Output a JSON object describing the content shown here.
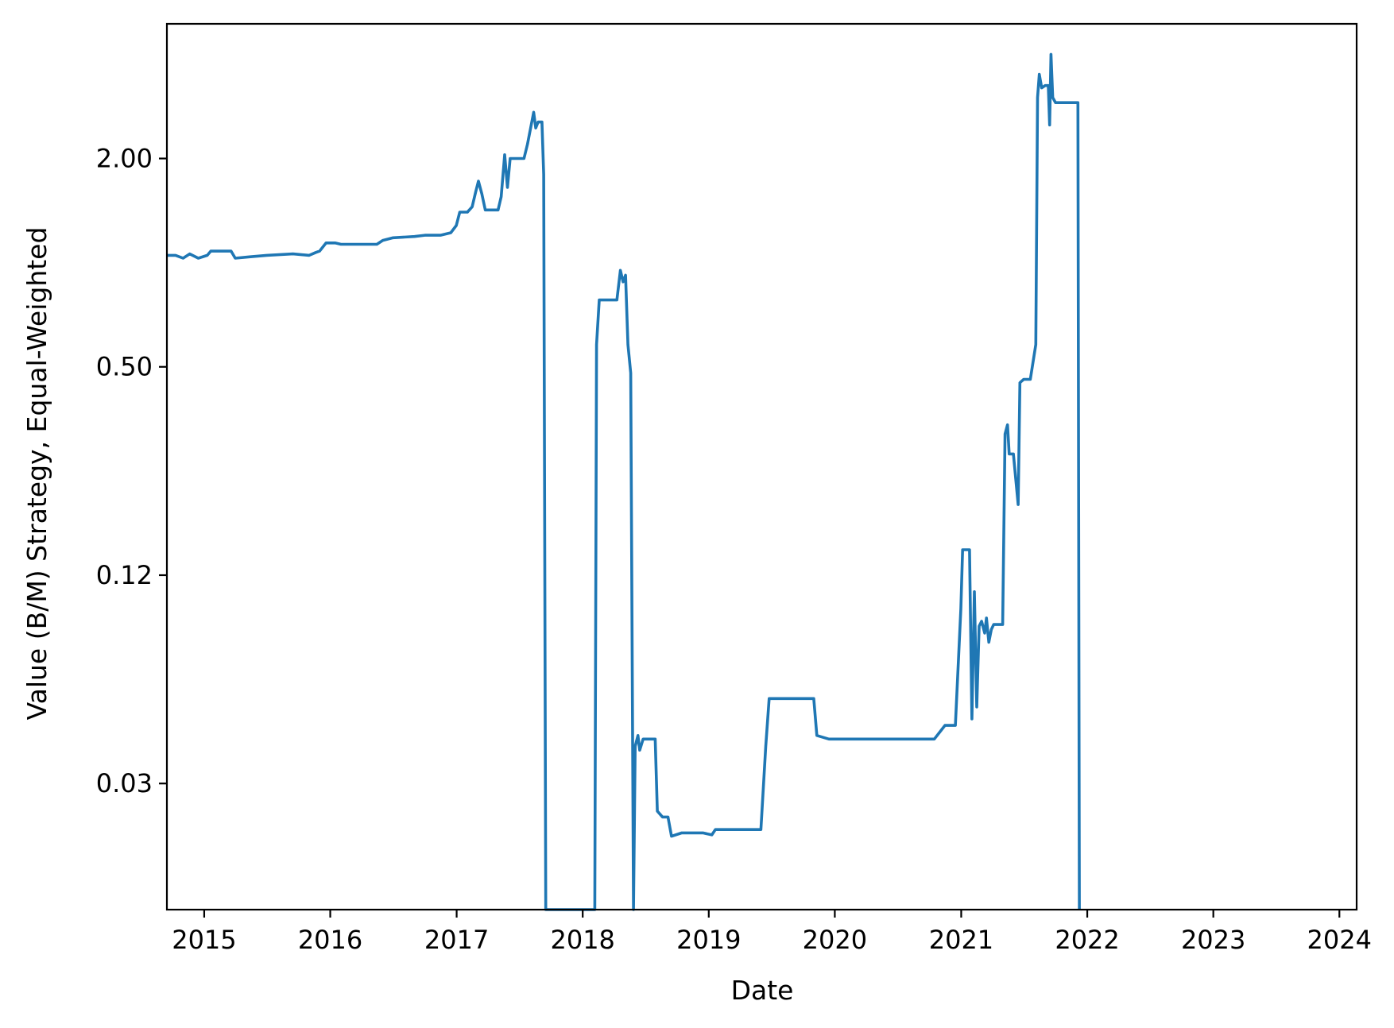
{
  "chart_data": {
    "type": "line",
    "title": "",
    "xlabel": "Date",
    "ylabel": "Value (B/M) Strategy, Equal-Weighted",
    "yscale": "log2",
    "xlim": [
      "2014-09-15",
      "2024-02-20"
    ],
    "ylim": [
      0.0135,
      4.9
    ],
    "x_ticks": [
      "2015",
      "2016",
      "2017",
      "2018",
      "2019",
      "2020",
      "2021",
      "2022",
      "2023",
      "2024"
    ],
    "y_ticks": [
      {
        "value": 2.0,
        "label": "2.00"
      },
      {
        "value": 0.5,
        "label": "0.50"
      },
      {
        "value": 0.125,
        "label": "0.12"
      },
      {
        "value": 0.03125,
        "label": "0.03"
      }
    ],
    "grid": false,
    "colors": {
      "series": "#1f77b4"
    },
    "series": [
      {
        "points": [
          [
            "2014-09-15",
            1.05
          ],
          [
            "2014-10-10",
            1.05
          ],
          [
            "2014-11-01",
            1.03
          ],
          [
            "2014-11-20",
            1.06
          ],
          [
            "2014-12-15",
            1.03
          ],
          [
            "2015-01-10",
            1.05
          ],
          [
            "2015-01-20",
            1.08
          ],
          [
            "2015-02-15",
            1.08
          ],
          [
            "2015-03-20",
            1.08
          ],
          [
            "2015-04-01",
            1.03
          ],
          [
            "2015-05-15",
            1.04
          ],
          [
            "2015-07-01",
            1.05
          ],
          [
            "2015-09-15",
            1.06
          ],
          [
            "2015-11-01",
            1.05
          ],
          [
            "2015-11-20",
            1.07
          ],
          [
            "2015-12-01",
            1.08
          ],
          [
            "2015-12-20",
            1.14
          ],
          [
            "2016-01-15",
            1.14
          ],
          [
            "2016-02-01",
            1.13
          ],
          [
            "2016-04-01",
            1.13
          ],
          [
            "2016-05-15",
            1.13
          ],
          [
            "2016-06-01",
            1.16
          ],
          [
            "2016-07-01",
            1.18
          ],
          [
            "2016-09-01",
            1.19
          ],
          [
            "2016-10-01",
            1.2
          ],
          [
            "2016-11-15",
            1.2
          ],
          [
            "2016-12-15",
            1.22
          ],
          [
            "2016-12-31",
            1.28
          ],
          [
            "2017-01-10",
            1.4
          ],
          [
            "2017-02-01",
            1.4
          ],
          [
            "2017-02-15",
            1.45
          ],
          [
            "2017-02-25",
            1.6
          ],
          [
            "2017-03-05",
            1.72
          ],
          [
            "2017-03-15",
            1.58
          ],
          [
            "2017-03-25",
            1.42
          ],
          [
            "2017-04-15",
            1.42
          ],
          [
            "2017-05-01",
            1.42
          ],
          [
            "2017-05-10",
            1.55
          ],
          [
            "2017-05-20",
            2.05
          ],
          [
            "2017-05-28",
            1.65
          ],
          [
            "2017-06-05",
            2.0
          ],
          [
            "2017-06-15",
            2.0
          ],
          [
            "2017-07-15",
            2.0
          ],
          [
            "2017-07-25",
            2.2
          ],
          [
            "2017-08-05",
            2.5
          ],
          [
            "2017-08-12",
            2.72
          ],
          [
            "2017-08-18",
            2.45
          ],
          [
            "2017-08-25",
            2.55
          ],
          [
            "2017-09-05",
            2.55
          ],
          [
            "2017-09-10",
            1.8
          ],
          [
            "2017-09-16",
            0.0135
          ],
          [
            "2018-02-05",
            0.0135
          ],
          [
            "2018-02-10",
            0.58
          ],
          [
            "2018-02-18",
            0.78
          ],
          [
            "2018-03-15",
            0.78
          ],
          [
            "2018-04-10",
            0.78
          ],
          [
            "2018-04-20",
            0.95
          ],
          [
            "2018-04-28",
            0.88
          ],
          [
            "2018-05-05",
            0.92
          ],
          [
            "2018-05-12",
            0.58
          ],
          [
            "2018-05-20",
            0.48
          ],
          [
            "2018-05-28",
            0.0135
          ],
          [
            "2018-06-02",
            0.04
          ],
          [
            "2018-06-10",
            0.043
          ],
          [
            "2018-06-15",
            0.039
          ],
          [
            "2018-06-25",
            0.042
          ],
          [
            "2018-07-15",
            0.042
          ],
          [
            "2018-07-30",
            0.042
          ],
          [
            "2018-08-05",
            0.026
          ],
          [
            "2018-08-20",
            0.025
          ],
          [
            "2018-09-05",
            0.025
          ],
          [
            "2018-09-15",
            0.022
          ],
          [
            "2018-10-15",
            0.0225
          ],
          [
            "2018-12-15",
            0.0225
          ],
          [
            "2019-01-10",
            0.0222
          ],
          [
            "2019-01-20",
            0.023
          ],
          [
            "2019-03-15",
            0.023
          ],
          [
            "2019-06-01",
            0.023
          ],
          [
            "2019-06-15",
            0.04
          ],
          [
            "2019-06-25",
            0.055
          ],
          [
            "2019-09-01",
            0.055
          ],
          [
            "2019-11-01",
            0.055
          ],
          [
            "2019-11-10",
            0.043
          ],
          [
            "2019-12-15",
            0.042
          ],
          [
            "2020-01-15",
            0.042
          ],
          [
            "2020-03-15",
            0.042
          ],
          [
            "2020-07-01",
            0.042
          ],
          [
            "2020-10-15",
            0.042
          ],
          [
            "2020-11-15",
            0.046
          ],
          [
            "2020-12-15",
            0.046
          ],
          [
            "2020-12-31",
            0.1
          ],
          [
            "2021-01-05",
            0.148
          ],
          [
            "2021-01-25",
            0.148
          ],
          [
            "2021-02-01",
            0.048
          ],
          [
            "2021-02-08",
            0.112
          ],
          [
            "2021-02-15",
            0.052
          ],
          [
            "2021-02-22",
            0.089
          ],
          [
            "2021-03-01",
            0.092
          ],
          [
            "2021-03-10",
            0.085
          ],
          [
            "2021-03-15",
            0.094
          ],
          [
            "2021-03-22",
            0.08
          ],
          [
            "2021-03-29",
            0.087
          ],
          [
            "2021-04-05",
            0.09
          ],
          [
            "2021-05-01",
            0.09
          ],
          [
            "2021-05-08",
            0.32
          ],
          [
            "2021-05-15",
            0.34
          ],
          [
            "2021-05-20",
            0.28
          ],
          [
            "2021-06-01",
            0.28
          ],
          [
            "2021-06-15",
            0.2
          ],
          [
            "2021-06-20",
            0.45
          ],
          [
            "2021-07-01",
            0.46
          ],
          [
            "2021-07-20",
            0.46
          ],
          [
            "2021-08-05",
            0.58
          ],
          [
            "2021-08-10",
            3.0
          ],
          [
            "2021-08-15",
            3.5
          ],
          [
            "2021-08-22",
            3.2
          ],
          [
            "2021-09-01",
            3.25
          ],
          [
            "2021-09-10",
            3.25
          ],
          [
            "2021-09-14",
            2.5
          ],
          [
            "2021-09-18",
            4.0
          ],
          [
            "2021-09-23",
            3.0
          ],
          [
            "2021-10-01",
            2.9
          ],
          [
            "2021-11-01",
            2.9
          ],
          [
            "2021-12-05",
            2.9
          ],
          [
            "2021-12-09",
            0.0135
          ]
        ]
      }
    ]
  }
}
